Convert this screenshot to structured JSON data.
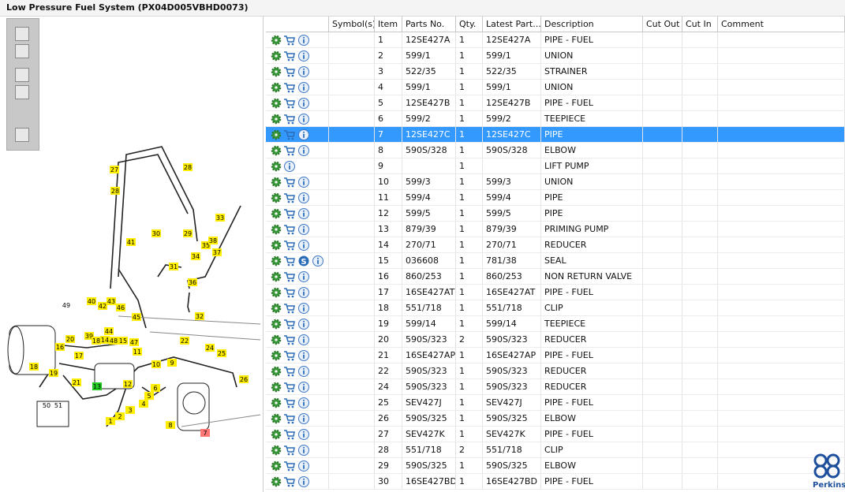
{
  "header": {
    "title": "Low Pressure Fuel System (PX04D005VBHD0073)"
  },
  "diagram": {
    "callouts": [
      "27",
      "28",
      "28",
      "41",
      "30",
      "31",
      "29",
      "35",
      "38",
      "34",
      "37",
      "33",
      "36",
      "32",
      "49",
      "40",
      "42",
      "43",
      "46",
      "45",
      "44",
      "20",
      "39",
      "18",
      "14",
      "48",
      "15",
      "47",
      "16",
      "11",
      "22",
      "24",
      "25",
      "26",
      "10",
      "9",
      "19",
      "18",
      "17",
      "21",
      "13",
      "12",
      "6",
      "5",
      "4",
      "3",
      "2",
      "1",
      "8",
      "7",
      "50",
      "51"
    ]
  },
  "table": {
    "columns": [
      "Symbol(s)",
      "Item",
      "Parts No.",
      "Qty.",
      "Latest Part...",
      "Description",
      "Cut Out",
      "Cut In",
      "Comment"
    ],
    "rows": [
      {
        "item": "1",
        "part_no": "12SE427A",
        "qty": "1",
        "latest": "12SE427A",
        "description": "PIPE - FUEL"
      },
      {
        "item": "2",
        "part_no": "599/1",
        "qty": "1",
        "latest": "599/1",
        "description": "UNION"
      },
      {
        "item": "3",
        "part_no": "522/35",
        "qty": "1",
        "latest": "522/35",
        "description": "STRAINER"
      },
      {
        "item": "4",
        "part_no": "599/1",
        "qty": "1",
        "latest": "599/1",
        "description": "UNION"
      },
      {
        "item": "5",
        "part_no": "12SE427B",
        "qty": "1",
        "latest": "12SE427B",
        "description": "PIPE - FUEL"
      },
      {
        "item": "6",
        "part_no": "599/2",
        "qty": "1",
        "latest": "599/2",
        "description": "TEEPIECE"
      },
      {
        "item": "7",
        "part_no": "12SE427C",
        "qty": "1",
        "latest": "12SE427C",
        "description": "PIPE"
      },
      {
        "item": "8",
        "part_no": "590S/328",
        "qty": "1",
        "latest": "590S/328",
        "description": "ELBOW"
      },
      {
        "item": "9",
        "qty": "1",
        "description": "LIFT PUMP"
      },
      {
        "item": "10",
        "part_no": "599/3",
        "qty": "1",
        "latest": "599/3",
        "description": "UNION"
      },
      {
        "item": "11",
        "part_no": "599/4",
        "qty": "1",
        "latest": "599/4",
        "description": "PIPE"
      },
      {
        "item": "12",
        "part_no": "599/5",
        "qty": "1",
        "latest": "599/5",
        "description": "PIPE"
      },
      {
        "item": "13",
        "part_no": "879/39",
        "qty": "1",
        "latest": "879/39",
        "description": "PRIMING PUMP"
      },
      {
        "item": "14",
        "part_no": "270/71",
        "qty": "1",
        "latest": "270/71",
        "description": "REDUCER"
      },
      {
        "item": "15",
        "part_no": "036608",
        "qty": "1",
        "latest": "781/38",
        "description": "SEAL",
        "symbol_icon": "S"
      },
      {
        "item": "16",
        "part_no": "860/253",
        "qty": "1",
        "latest": "860/253",
        "description": "NON RETURN VALVE"
      },
      {
        "item": "17",
        "part_no": "16SE427AT",
        "qty": "1",
        "latest": "16SE427AT",
        "description": "PIPE - FUEL"
      },
      {
        "item": "18",
        "part_no": "551/718",
        "qty": "1",
        "latest": "551/718",
        "description": "CLIP"
      },
      {
        "item": "19",
        "part_no": "599/14",
        "qty": "1",
        "latest": "599/14",
        "description": "TEEPIECE"
      },
      {
        "item": "20",
        "part_no": "590S/323",
        "qty": "2",
        "latest": "590S/323",
        "description": "REDUCER"
      },
      {
        "item": "21",
        "part_no": "16SE427AP",
        "qty": "1",
        "latest": "16SE427AP",
        "description": "PIPE - FUEL"
      },
      {
        "item": "22",
        "part_no": "590S/323",
        "qty": "1",
        "latest": "590S/323",
        "description": "REDUCER"
      },
      {
        "item": "24",
        "part_no": "590S/323",
        "qty": "1",
        "latest": "590S/323",
        "description": "REDUCER"
      },
      {
        "item": "25",
        "part_no": "SEV427J",
        "qty": "1",
        "latest": "SEV427J",
        "description": "PIPE - FUEL"
      },
      {
        "item": "26",
        "part_no": "590S/325",
        "qty": "1",
        "latest": "590S/325",
        "description": "ELBOW"
      },
      {
        "item": "27",
        "part_no": "SEV427K",
        "qty": "1",
        "latest": "SEV427K",
        "description": "PIPE - FUEL"
      },
      {
        "item": "28",
        "part_no": "551/718",
        "qty": "2",
        "latest": "551/718",
        "description": "CLIP"
      },
      {
        "item": "29",
        "part_no": "590S/325",
        "qty": "1",
        "latest": "590S/325",
        "description": "ELBOW"
      },
      {
        "item": "30",
        "part_no": "16SE427BD",
        "qty": "1",
        "latest": "16SE427BD",
        "description": "PIPE - FUEL"
      }
    ]
  },
  "logo": {
    "text": "Perkins"
  }
}
